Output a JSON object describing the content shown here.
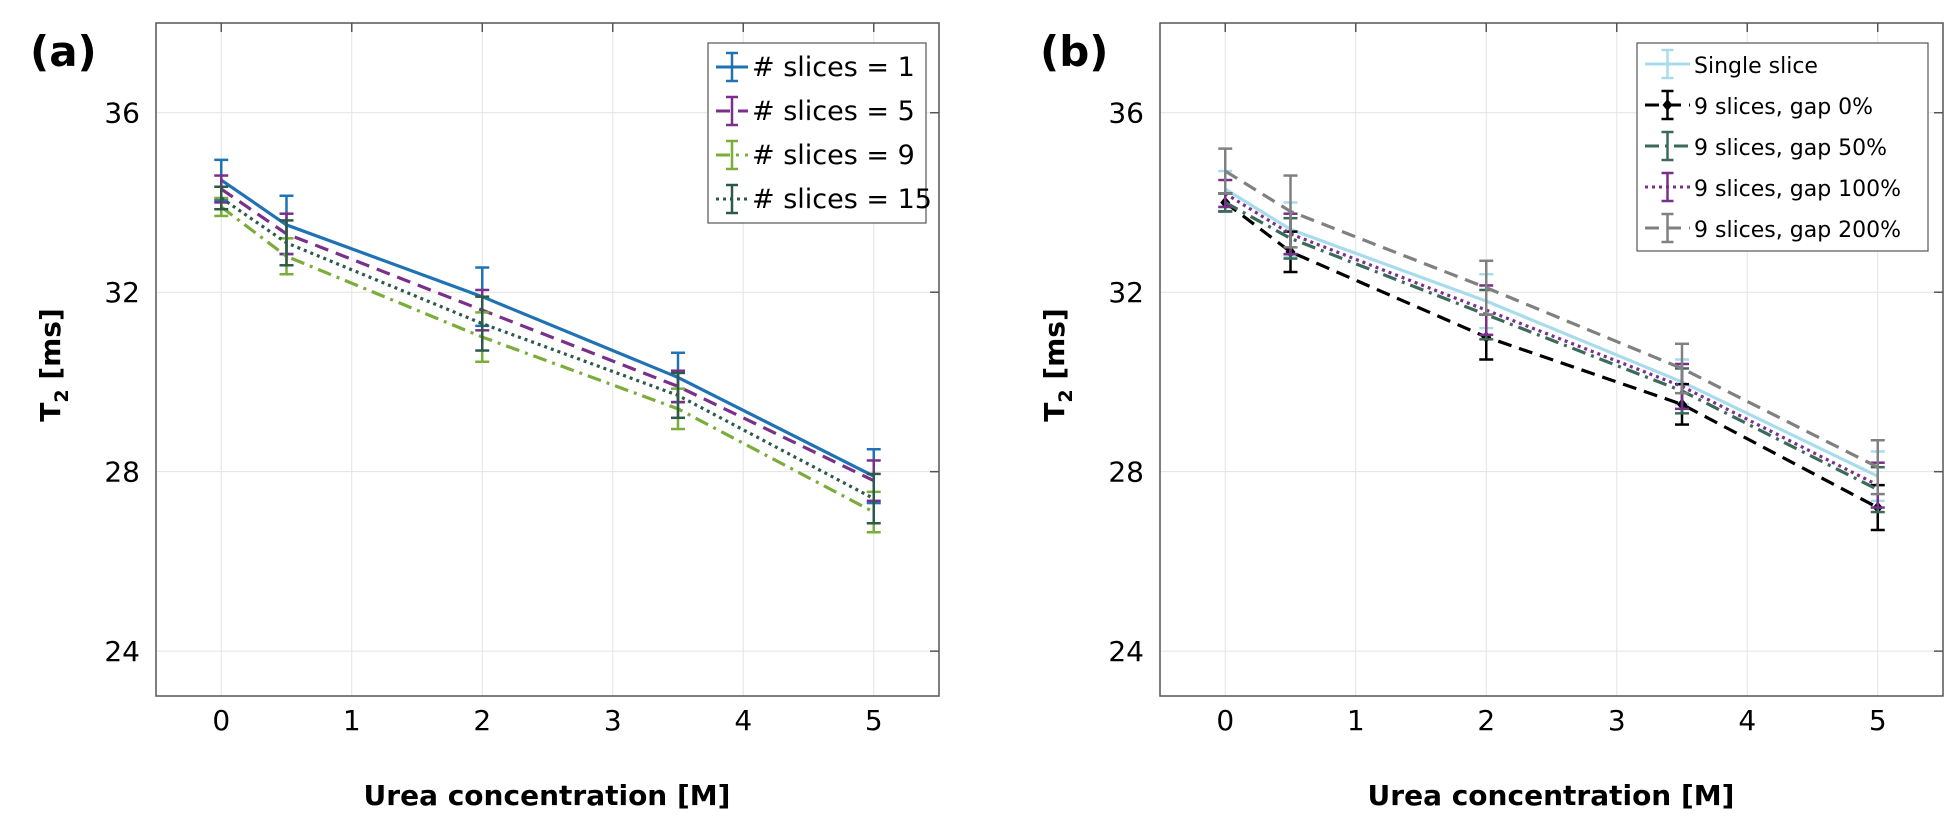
{
  "chart_data": [
    {
      "type": "line",
      "panel_label": "(a)",
      "xlabel": "Urea concentration [M]",
      "ylabel": "T",
      "ylabel_sub": "2",
      "ylabel_unit": " [ms]",
      "xlim": [
        -0.5,
        5.5
      ],
      "ylim": [
        23,
        38
      ],
      "xticks": [
        0,
        1,
        2,
        3,
        4,
        5
      ],
      "xtick_labels": [
        "0",
        "1",
        "2",
        "3",
        "4",
        "5"
      ],
      "yticks": [
        24,
        28,
        32,
        36
      ],
      "ytick_labels": [
        "24",
        "28",
        "32",
        "36"
      ],
      "grid": true,
      "legend_position": "top-right",
      "x": [
        0,
        0.5,
        2,
        3.5,
        5
      ],
      "series": [
        {
          "name": "# slices = 1",
          "color": "#1f72b4",
          "dash": "solid",
          "values": [
            34.5,
            33.5,
            31.9,
            30.1,
            27.9
          ],
          "errors": [
            0.45,
            0.65,
            0.65,
            0.55,
            0.6
          ]
        },
        {
          "name": "# slices = 5",
          "color": "#7a2f8a",
          "dash": "dashed",
          "values": [
            34.3,
            33.3,
            31.6,
            29.9,
            27.8
          ],
          "errors": [
            0.3,
            0.45,
            0.45,
            0.35,
            0.45
          ]
        },
        {
          "name": "# slices = 9",
          "color": "#7aad3a",
          "dash": "dashdot",
          "values": [
            33.9,
            32.8,
            31.0,
            29.4,
            27.1
          ],
          "errors": [
            0.2,
            0.4,
            0.55,
            0.45,
            0.45
          ]
        },
        {
          "name": "# slices = 15",
          "color": "#2d5a47",
          "dash": "dotted",
          "values": [
            34.1,
            33.1,
            31.3,
            29.7,
            27.4
          ],
          "errors": [
            0.25,
            0.5,
            0.6,
            0.5,
            0.55
          ]
        }
      ]
    },
    {
      "type": "line",
      "panel_label": "(b)",
      "xlabel": "Urea concentration [M]",
      "ylabel": "T",
      "ylabel_sub": "2",
      "ylabel_unit": " [ms]",
      "xlim": [
        -0.5,
        5.5
      ],
      "ylim": [
        23,
        38
      ],
      "xticks": [
        0,
        1,
        2,
        3,
        4,
        5
      ],
      "xtick_labels": [
        "0",
        "1",
        "2",
        "3",
        "4",
        "5"
      ],
      "yticks": [
        24,
        28,
        32,
        36
      ],
      "ytick_labels": [
        "24",
        "28",
        "32",
        "36"
      ],
      "grid": true,
      "legend_position": "top-right",
      "x": [
        0,
        0.5,
        2,
        3.5,
        5
      ],
      "series": [
        {
          "name": "Single slice",
          "color": "#a8dcec",
          "dash": "solid",
          "values": [
            34.3,
            33.4,
            31.8,
            30.0,
            27.9
          ],
          "errors": [
            0.4,
            0.6,
            0.6,
            0.5,
            0.55
          ]
        },
        {
          "name": "9 slices, gap 0%",
          "color": "#000000",
          "dash": "dashed",
          "marker": "diamond",
          "values": [
            34.0,
            32.9,
            31.0,
            29.5,
            27.2
          ],
          "errors": [
            0.2,
            0.45,
            0.5,
            0.45,
            0.5
          ]
        },
        {
          "name": "9 slices, gap 50%",
          "color": "#3a6b58",
          "dash": "dashdot",
          "values": [
            34.0,
            33.2,
            31.5,
            29.8,
            27.6
          ],
          "errors": [
            0.2,
            0.45,
            0.55,
            0.5,
            0.5
          ]
        },
        {
          "name": "9 slices, gap 100%",
          "color": "#7a2f8a",
          "dash": "dotted",
          "values": [
            34.2,
            33.3,
            31.6,
            29.9,
            27.7
          ],
          "errors": [
            0.3,
            0.45,
            0.55,
            0.5,
            0.5
          ]
        },
        {
          "name": "9 slices, gap 200%",
          "color": "#808080",
          "dash": "dashed",
          "values": [
            34.7,
            33.8,
            32.1,
            30.3,
            28.1
          ],
          "errors": [
            0.5,
            0.8,
            0.6,
            0.55,
            0.6
          ]
        }
      ]
    }
  ]
}
